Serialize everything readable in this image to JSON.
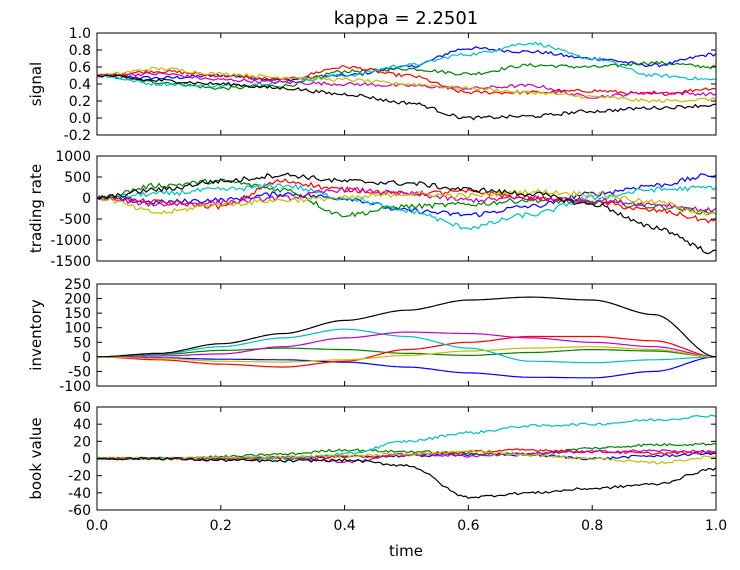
{
  "chart_data": {
    "type": "line",
    "title": "kappa = 2.2501",
    "xlabel": "time",
    "xlim": [
      0.0,
      1.0
    ],
    "xticks": [
      "0.0",
      "0.2",
      "0.4",
      "0.6",
      "0.8",
      "1.0"
    ],
    "colors": [
      "#0000ff",
      "#008000",
      "#ff0000",
      "#00bfbf",
      "#bf00bf",
      "#bfbf00",
      "#000000"
    ],
    "panels": [
      {
        "ylabel": "signal",
        "ylim": [
          -0.2,
          1.0
        ],
        "yticks": [
          "-0.2",
          "0.0",
          "0.2",
          "0.4",
          "0.6",
          "0.8",
          "1.0"
        ],
        "series": [
          {
            "x": [
              0,
              0.1,
              0.2,
              0.3,
              0.4,
              0.5,
              0.6,
              0.7,
              0.8,
              0.9,
              1.0
            ],
            "y": [
              0.5,
              0.47,
              0.5,
              0.45,
              0.5,
              0.6,
              0.82,
              0.78,
              0.7,
              0.62,
              0.75
            ]
          },
          {
            "x": [
              0,
              0.1,
              0.2,
              0.3,
              0.4,
              0.5,
              0.6,
              0.7,
              0.8,
              0.9,
              1.0
            ],
            "y": [
              0.5,
              0.42,
              0.35,
              0.38,
              0.55,
              0.58,
              0.52,
              0.62,
              0.6,
              0.65,
              0.6
            ]
          },
          {
            "x": [
              0,
              0.1,
              0.2,
              0.3,
              0.4,
              0.5,
              0.6,
              0.7,
              0.8,
              0.9,
              1.0
            ],
            "y": [
              0.5,
              0.55,
              0.5,
              0.45,
              0.6,
              0.5,
              0.3,
              0.3,
              0.32,
              0.28,
              0.35
            ]
          },
          {
            "x": [
              0,
              0.1,
              0.2,
              0.3,
              0.4,
              0.5,
              0.6,
              0.7,
              0.8,
              0.9,
              1.0
            ],
            "y": [
              0.5,
              0.4,
              0.38,
              0.42,
              0.5,
              0.62,
              0.75,
              0.88,
              0.7,
              0.5,
              0.45
            ]
          },
          {
            "x": [
              0,
              0.1,
              0.2,
              0.3,
              0.4,
              0.5,
              0.6,
              0.7,
              0.8,
              0.9,
              1.0
            ],
            "y": [
              0.5,
              0.52,
              0.45,
              0.42,
              0.4,
              0.38,
              0.35,
              0.38,
              0.25,
              0.3,
              0.28
            ]
          },
          {
            "x": [
              0,
              0.1,
              0.2,
              0.3,
              0.4,
              0.5,
              0.6,
              0.7,
              0.8,
              0.9,
              1.0
            ],
            "y": [
              0.5,
              0.58,
              0.52,
              0.48,
              0.45,
              0.4,
              0.35,
              0.3,
              0.25,
              0.2,
              0.22
            ]
          },
          {
            "x": [
              0,
              0.1,
              0.2,
              0.3,
              0.4,
              0.5,
              0.6,
              0.7,
              0.8,
              0.9,
              1.0
            ],
            "y": [
              0.5,
              0.44,
              0.4,
              0.35,
              0.28,
              0.18,
              0.0,
              0.02,
              0.08,
              0.12,
              0.15
            ]
          }
        ]
      },
      {
        "ylabel": "trading rate",
        "ylim": [
          -1500,
          1000
        ],
        "yticks": [
          "-1500",
          "-1000",
          "-500",
          "0",
          "500",
          "1000"
        ],
        "series": [
          {
            "x": [
              0,
              0.1,
              0.2,
              0.3,
              0.4,
              0.5,
              0.6,
              0.7,
              0.8,
              0.9,
              1.0
            ],
            "y": [
              0,
              -100,
              -50,
              100,
              0,
              -300,
              -400,
              -200,
              100,
              300,
              550
            ]
          },
          {
            "x": [
              0,
              0.1,
              0.2,
              0.3,
              0.4,
              0.5,
              0.6,
              0.7,
              0.8,
              0.9,
              1.0
            ],
            "y": [
              0,
              300,
              400,
              200,
              -400,
              -200,
              -150,
              -50,
              -100,
              -200,
              -350
            ]
          },
          {
            "x": [
              0,
              0.1,
              0.2,
              0.3,
              0.4,
              0.5,
              0.6,
              0.7,
              0.8,
              0.9,
              1.0
            ],
            "y": [
              0,
              -100,
              -200,
              400,
              200,
              100,
              150,
              0,
              -100,
              -300,
              -550
            ]
          },
          {
            "x": [
              0,
              0.1,
              0.2,
              0.3,
              0.4,
              0.5,
              0.6,
              0.7,
              0.8,
              0.9,
              1.0
            ],
            "y": [
              0,
              100,
              200,
              300,
              0,
              -300,
              -700,
              -400,
              0,
              200,
              250
            ]
          },
          {
            "x": [
              0,
              0.1,
              0.2,
              0.3,
              0.4,
              0.5,
              0.6,
              0.7,
              0.8,
              0.9,
              1.0
            ],
            "y": [
              0,
              -150,
              -100,
              0,
              200,
              100,
              -50,
              0,
              -50,
              -150,
              -300
            ]
          },
          {
            "x": [
              0,
              0.1,
              0.2,
              0.3,
              0.4,
              0.5,
              0.6,
              0.7,
              0.8,
              0.9,
              1.0
            ],
            "y": [
              0,
              -350,
              -150,
              -50,
              0,
              100,
              50,
              150,
              100,
              -100,
              -400
            ]
          },
          {
            "x": [
              0,
              0.1,
              0.2,
              0.3,
              0.4,
              0.5,
              0.6,
              0.7,
              0.8,
              0.9,
              1.0
            ],
            "y": [
              0,
              200,
              400,
              550,
              400,
              350,
              200,
              100,
              -150,
              -700,
              -1300
            ]
          }
        ]
      },
      {
        "ylabel": "inventory",
        "ylim": [
          -100,
          250
        ],
        "yticks": [
          "-100",
          "-50",
          "0",
          "50",
          "100",
          "150",
          "200",
          "250"
        ],
        "series": [
          {
            "x": [
              0,
              0.1,
              0.2,
              0.3,
              0.4,
              0.5,
              0.6,
              0.7,
              0.8,
              0.9,
              1.0
            ],
            "y": [
              0,
              -3,
              -8,
              -10,
              -18,
              -35,
              -55,
              -70,
              -72,
              -50,
              0
            ]
          },
          {
            "x": [
              0,
              0.1,
              0.2,
              0.3,
              0.4,
              0.5,
              0.6,
              0.7,
              0.8,
              0.9,
              1.0
            ],
            "y": [
              0,
              8,
              22,
              30,
              25,
              12,
              5,
              15,
              25,
              20,
              0
            ]
          },
          {
            "x": [
              0,
              0.1,
              0.2,
              0.3,
              0.4,
              0.5,
              0.6,
              0.7,
              0.8,
              0.9,
              1.0
            ],
            "y": [
              0,
              -10,
              -25,
              -35,
              -15,
              25,
              50,
              70,
              70,
              55,
              0
            ]
          },
          {
            "x": [
              0,
              0.1,
              0.2,
              0.3,
              0.4,
              0.5,
              0.6,
              0.7,
              0.8,
              0.9,
              1.0
            ],
            "y": [
              0,
              10,
              35,
              65,
              95,
              70,
              30,
              -15,
              -20,
              -10,
              0
            ]
          },
          {
            "x": [
              0,
              0.1,
              0.2,
              0.3,
              0.4,
              0.5,
              0.6,
              0.7,
              0.8,
              0.9,
              1.0
            ],
            "y": [
              0,
              3,
              10,
              35,
              65,
              85,
              80,
              65,
              50,
              35,
              0
            ]
          },
          {
            "x": [
              0,
              0.1,
              0.2,
              0.3,
              0.4,
              0.5,
              0.6,
              0.7,
              0.8,
              0.9,
              1.0
            ],
            "y": [
              0,
              -5,
              -15,
              -18,
              -10,
              5,
              20,
              30,
              35,
              25,
              0
            ]
          },
          {
            "x": [
              0,
              0.1,
              0.2,
              0.3,
              0.4,
              0.5,
              0.6,
              0.7,
              0.8,
              0.9,
              1.0
            ],
            "y": [
              0,
              12,
              45,
              80,
              125,
              160,
              195,
              205,
              195,
              145,
              0
            ]
          }
        ]
      },
      {
        "ylabel": "book value",
        "ylim": [
          -60,
          60
        ],
        "yticks": [
          "-60",
          "-40",
          "-20",
          "0",
          "20",
          "40",
          "60"
        ],
        "series": [
          {
            "x": [
              0,
              0.1,
              0.2,
              0.3,
              0.4,
              0.5,
              0.6,
              0.7,
              0.8,
              0.9,
              1.0
            ],
            "y": [
              0,
              0,
              0,
              1,
              2,
              3,
              5,
              4,
              0,
              3,
              6
            ]
          },
          {
            "x": [
              0,
              0.1,
              0.2,
              0.3,
              0.4,
              0.5,
              0.6,
              0.7,
              0.8,
              0.9,
              1.0
            ],
            "y": [
              0,
              0,
              2,
              5,
              10,
              8,
              6,
              5,
              12,
              16,
              17
            ]
          },
          {
            "x": [
              0,
              0.1,
              0.2,
              0.3,
              0.4,
              0.5,
              0.6,
              0.7,
              0.8,
              0.9,
              1.0
            ],
            "y": [
              0,
              0,
              -1,
              0,
              2,
              4,
              8,
              10,
              8,
              6,
              7
            ]
          },
          {
            "x": [
              0,
              0.1,
              0.2,
              0.3,
              0.4,
              0.5,
              0.6,
              0.7,
              0.8,
              0.9,
              1.0
            ],
            "y": [
              0,
              0,
              0,
              0,
              5,
              20,
              30,
              38,
              40,
              45,
              50
            ]
          },
          {
            "x": [
              0,
              0.1,
              0.2,
              0.3,
              0.4,
              0.5,
              0.6,
              0.7,
              0.8,
              0.9,
              1.0
            ],
            "y": [
              0,
              0,
              0,
              2,
              -4,
              5,
              3,
              6,
              8,
              9,
              8
            ]
          },
          {
            "x": [
              0,
              0.1,
              0.2,
              0.3,
              0.4,
              0.5,
              0.6,
              0.7,
              0.8,
              0.9,
              1.0
            ],
            "y": [
              0,
              0,
              1,
              2,
              3,
              5,
              8,
              4,
              0,
              -5,
              2
            ]
          },
          {
            "x": [
              0,
              0.1,
              0.2,
              0.3,
              0.4,
              0.5,
              0.6,
              0.7,
              0.8,
              0.9,
              1.0
            ],
            "y": [
              0,
              0,
              -2,
              -3,
              -2,
              -8,
              -45,
              -40,
              -35,
              -30,
              -12
            ]
          }
        ]
      }
    ]
  }
}
